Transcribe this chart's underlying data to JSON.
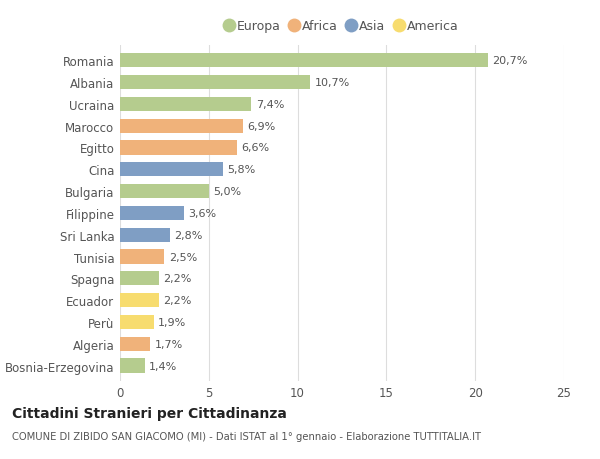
{
  "countries": [
    "Romania",
    "Albania",
    "Ucraina",
    "Marocco",
    "Egitto",
    "Cina",
    "Bulgaria",
    "Filippine",
    "Sri Lanka",
    "Tunisia",
    "Spagna",
    "Ecuador",
    "Perù",
    "Algeria",
    "Bosnia-Erzegovina"
  ],
  "values": [
    20.7,
    10.7,
    7.4,
    6.9,
    6.6,
    5.8,
    5.0,
    3.6,
    2.8,
    2.5,
    2.2,
    2.2,
    1.9,
    1.7,
    1.4
  ],
  "regions": [
    "Europa",
    "Europa",
    "Europa",
    "Africa",
    "Africa",
    "Asia",
    "Europa",
    "Asia",
    "Asia",
    "Africa",
    "Europa",
    "America",
    "America",
    "Africa",
    "Europa"
  ],
  "region_colors": {
    "Europa": "#b5cc8e",
    "Africa": "#f0b27a",
    "Asia": "#7f9ec4",
    "America": "#f7dc6f"
  },
  "legend_order": [
    "Europa",
    "Africa",
    "Asia",
    "America"
  ],
  "title": "Cittadini Stranieri per Cittadinanza",
  "subtitle": "COMUNE DI ZIBIDO SAN GIACOMO (MI) - Dati ISTAT al 1° gennaio - Elaborazione TUTTITALIA.IT",
  "xlim": [
    0,
    25
  ],
  "xticks": [
    0,
    5,
    10,
    15,
    20,
    25
  ],
  "bg_color": "#ffffff",
  "grid_color": "#dddddd",
  "label_color": "#888888",
  "text_color": "#555555"
}
